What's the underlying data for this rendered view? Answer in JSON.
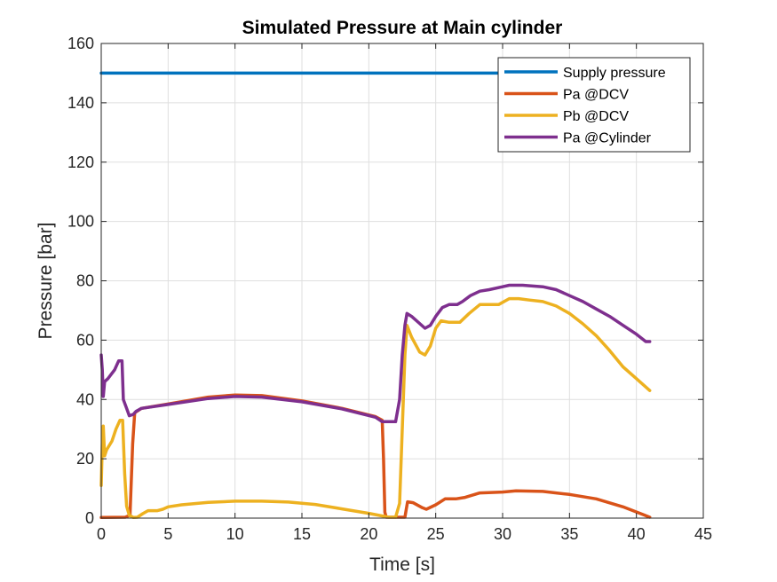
{
  "chart_data": {
    "type": "line",
    "title": "Simulated Pressure at Main cylinder",
    "xlabel": "Time [s]",
    "ylabel": "Pressure [bar]",
    "xlim": [
      0,
      45
    ],
    "ylim": [
      0,
      160
    ],
    "xticks": [
      0,
      5,
      10,
      15,
      20,
      25,
      30,
      35,
      40,
      45
    ],
    "yticks": [
      0,
      20,
      40,
      60,
      80,
      100,
      120,
      140,
      160
    ],
    "grid": true,
    "legend_position": "top-right",
    "series": [
      {
        "name": "Supply pressure",
        "color": "#0072BD",
        "points": [
          [
            0,
            150
          ],
          [
            41,
            150
          ]
        ]
      },
      {
        "name": "Pa @DCV",
        "color": "#D95319",
        "points": [
          [
            0,
            0.2
          ],
          [
            1.8,
            0.3
          ],
          [
            2.15,
            1
          ],
          [
            2.35,
            25
          ],
          [
            2.5,
            35.5
          ],
          [
            3,
            37
          ],
          [
            5,
            38.5
          ],
          [
            8,
            40.8
          ],
          [
            10,
            41.5
          ],
          [
            12,
            41.3
          ],
          [
            15,
            39.5
          ],
          [
            18,
            37
          ],
          [
            20.5,
            34.2
          ],
          [
            21,
            33
          ],
          [
            21.1,
            20
          ],
          [
            21.2,
            2
          ],
          [
            21.3,
            0.3
          ],
          [
            22.7,
            0.3
          ],
          [
            22.8,
            3
          ],
          [
            22.9,
            5.5
          ],
          [
            23.3,
            5.2
          ],
          [
            24,
            3.5
          ],
          [
            24.3,
            3
          ],
          [
            25,
            4.5
          ],
          [
            25.7,
            6.5
          ],
          [
            26.5,
            6.5
          ],
          [
            27.2,
            7
          ],
          [
            28.3,
            8.5
          ],
          [
            30,
            8.8
          ],
          [
            31,
            9.2
          ],
          [
            33,
            9
          ],
          [
            35,
            8
          ],
          [
            37,
            6.5
          ],
          [
            39,
            3.8
          ],
          [
            40.5,
            1.2
          ],
          [
            41,
            0.3
          ]
        ]
      },
      {
        "name": "Pb @DCV",
        "color": "#EDB120",
        "points": [
          [
            0,
            11
          ],
          [
            0.08,
            25
          ],
          [
            0.15,
            31
          ],
          [
            0.25,
            21
          ],
          [
            0.4,
            23
          ],
          [
            0.8,
            26
          ],
          [
            1.1,
            30
          ],
          [
            1.4,
            33
          ],
          [
            1.6,
            33
          ],
          [
            1.75,
            15
          ],
          [
            1.9,
            4
          ],
          [
            2.1,
            1
          ],
          [
            2.4,
            0.2
          ],
          [
            2.7,
            0.3
          ],
          [
            3.1,
            1.5
          ],
          [
            3.5,
            2.5
          ],
          [
            4.2,
            2.5
          ],
          [
            4.6,
            3
          ],
          [
            5,
            3.8
          ],
          [
            6,
            4.5
          ],
          [
            8,
            5.3
          ],
          [
            10,
            5.7
          ],
          [
            12,
            5.7
          ],
          [
            14,
            5.4
          ],
          [
            16,
            4.6
          ],
          [
            18,
            3.1
          ],
          [
            20,
            1.6
          ],
          [
            21.5,
            0.3
          ],
          [
            22,
            0.3
          ],
          [
            22.3,
            5
          ],
          [
            22.5,
            30
          ],
          [
            22.7,
            55
          ],
          [
            22.85,
            65
          ],
          [
            23.2,
            61
          ],
          [
            23.8,
            56
          ],
          [
            24.2,
            55
          ],
          [
            24.6,
            58
          ],
          [
            25,
            64
          ],
          [
            25.4,
            66.5
          ],
          [
            26,
            66
          ],
          [
            26.8,
            66
          ],
          [
            27.5,
            69
          ],
          [
            28.3,
            72
          ],
          [
            29,
            72
          ],
          [
            29.7,
            72
          ],
          [
            30.5,
            74
          ],
          [
            31.2,
            74
          ],
          [
            32,
            73.5
          ],
          [
            33,
            73
          ],
          [
            34,
            71.5
          ],
          [
            35,
            69
          ],
          [
            36,
            65.5
          ],
          [
            37,
            61.5
          ],
          [
            38,
            56.5
          ],
          [
            39,
            51
          ],
          [
            40,
            47
          ],
          [
            41,
            43
          ]
        ]
      },
      {
        "name": "Pa @Cylinder",
        "color": "#7E2F8E",
        "points": [
          [
            0,
            55
          ],
          [
            0.08,
            50
          ],
          [
            0.15,
            41
          ],
          [
            0.25,
            46
          ],
          [
            0.5,
            47
          ],
          [
            1,
            50
          ],
          [
            1.3,
            53
          ],
          [
            1.55,
            53
          ],
          [
            1.65,
            40
          ],
          [
            1.9,
            37
          ],
          [
            2.1,
            34.5
          ],
          [
            2.4,
            35
          ],
          [
            2.6,
            36
          ],
          [
            3,
            37
          ],
          [
            5,
            38.3
          ],
          [
            8,
            40.3
          ],
          [
            10,
            41
          ],
          [
            12,
            40.8
          ],
          [
            15,
            39.2
          ],
          [
            18,
            36.8
          ],
          [
            20.5,
            34
          ],
          [
            21,
            32.5
          ],
          [
            21.5,
            32.5
          ],
          [
            22,
            32.5
          ],
          [
            22.3,
            40
          ],
          [
            22.5,
            55
          ],
          [
            22.7,
            65
          ],
          [
            22.85,
            69
          ],
          [
            23.2,
            68
          ],
          [
            24.2,
            64
          ],
          [
            24.6,
            65
          ],
          [
            25,
            68
          ],
          [
            25.5,
            71
          ],
          [
            26,
            72
          ],
          [
            26.6,
            72
          ],
          [
            27,
            73
          ],
          [
            27.6,
            75
          ],
          [
            28.3,
            76.5
          ],
          [
            29,
            77
          ],
          [
            30,
            78
          ],
          [
            30.5,
            78.5
          ],
          [
            31.5,
            78.5
          ],
          [
            33,
            78
          ],
          [
            34,
            77
          ],
          [
            35,
            75
          ],
          [
            36,
            73
          ],
          [
            37,
            70.5
          ],
          [
            38,
            68
          ],
          [
            39,
            65
          ],
          [
            40,
            62
          ],
          [
            40.7,
            59.5
          ],
          [
            41,
            59.5
          ]
        ]
      }
    ]
  }
}
